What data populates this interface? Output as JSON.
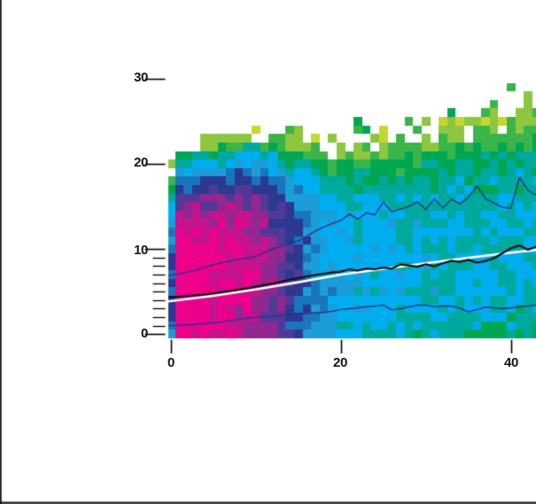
{
  "chart_data": {
    "type": "heatmap",
    "description": "2D density histogram with profile overlay lines",
    "background_color": "#ffffff",
    "frame_color": "#1c1c1e",
    "tick_color": "#000000",
    "label_color": "#131313",
    "x_axis": {
      "ticks": [
        0,
        20,
        40
      ],
      "tick_labels": [
        "0",
        "20",
        "40"
      ],
      "minor_ticks": [],
      "range": [
        -0.3,
        43.0
      ]
    },
    "y_axis": {
      "ticks": [
        0,
        10,
        20,
        30
      ],
      "tick_labels": [
        "0",
        "10",
        "20",
        "30"
      ],
      "minor_ticks": [
        1,
        2,
        3,
        4,
        5,
        6,
        7,
        8,
        9
      ],
      "range": [
        -0.5,
        39.7
      ]
    },
    "bins": {
      "x_bin_width": 1,
      "y_bin_width": 1,
      "x_bins": 44,
      "y_bins": 40
    },
    "palette_low_to_high": [
      "#c3d830",
      "#8dc63f",
      "#39b54a",
      "#00a651",
      "#00a99d",
      "#00aeef",
      "#1b9dd9",
      "#1b75bc",
      "#2b3990",
      "#513a97",
      "#92278f",
      "#c4138c",
      "#ec008c"
    ],
    "zero_count_color": "#ffffff",
    "density_model": {
      "seed": 7,
      "ridge_center": {
        "base": 4.2,
        "slope": 0.135
      },
      "peak_log10": {
        "floor": 1.35,
        "exp_amp": 0.9,
        "exp_scale": 30,
        "logistic_amp": 2.0,
        "logistic_mid": 14,
        "logistic_width": 2.2
      },
      "sigma_upper": {
        "base": 7.0,
        "slope": 0.05
      },
      "sigma_lower": {
        "base": 5.0,
        "slope": 0.1
      },
      "shape_power": 3.2,
      "noise_dex": 0.3,
      "first_column_suppression_dex": 1.6,
      "sparse_lambda_cutoff": 1.7,
      "sparse_fill_factor": 0.45,
      "level_step_dex": 0.338,
      "level_offset_dex": 0.1
    },
    "series": [
      {
        "name": "fit_line",
        "color": "#ffffff",
        "width": 2.6,
        "points": [
          [
            0,
            3.85
          ],
          [
            5,
            4.5
          ],
          [
            10,
            5.25
          ],
          [
            15,
            6.1
          ],
          [
            20,
            7.0
          ],
          [
            25,
            7.68
          ],
          [
            30,
            8.32
          ],
          [
            35,
            8.98
          ],
          [
            40,
            9.58
          ],
          [
            43,
            9.9
          ]
        ]
      },
      {
        "name": "profile_mean",
        "color": "#121212",
        "width": 2.2,
        "x_start": 0,
        "values": [
          4.35,
          4.42,
          4.5,
          4.58,
          4.68,
          4.8,
          4.93,
          5.08,
          5.23,
          5.4,
          5.58,
          5.76,
          5.96,
          6.18,
          6.4,
          6.6,
          6.78,
          6.95,
          7.1,
          7.25,
          7.35,
          7.62,
          7.48,
          7.72,
          7.62,
          7.82,
          7.7,
          8.18,
          8.08,
          7.92,
          8.22,
          7.98,
          8.32,
          8.62,
          8.48,
          8.72,
          8.42,
          8.6,
          8.92,
          9.5,
          10.1,
          10.42,
          9.92,
          10.28
        ]
      },
      {
        "name": "upper_band",
        "color": "#27348b",
        "width": 1.4,
        "x_start": 0,
        "values": [
          6.9,
          7.1,
          7.3,
          7.55,
          7.85,
          8.15,
          8.4,
          8.6,
          8.8,
          8.95,
          9.1,
          9.55,
          10.0,
          10.35,
          10.7,
          10.95,
          11.5,
          12.1,
          12.6,
          13.0,
          13.35,
          14.1,
          13.5,
          14.25,
          14.0,
          15.5,
          14.35,
          14.7,
          15.0,
          15.55,
          14.65,
          15.9,
          14.8,
          15.85,
          15.3,
          16.05,
          17.4,
          15.9,
          15.4,
          14.9,
          14.8,
          18.4,
          16.9,
          16.3
        ]
      },
      {
        "name": "lower_band",
        "color": "#27348b",
        "width": 1.4,
        "x_start": 0,
        "values": [
          1.0,
          1.05,
          1.1,
          1.18,
          1.25,
          1.33,
          1.45,
          1.6,
          1.73,
          1.87,
          1.98,
          2.05,
          2.12,
          2.2,
          2.3,
          2.4,
          2.45,
          2.5,
          2.55,
          2.7,
          2.9,
          3.0,
          3.1,
          3.22,
          3.3,
          3.42,
          2.85,
          3.0,
          3.2,
          3.42,
          3.4,
          3.22,
          3.3,
          3.32,
          3.05,
          2.62,
          2.9,
          3.18,
          3.1,
          3.0,
          3.1,
          3.2,
          3.3,
          3.42
        ]
      }
    ]
  }
}
